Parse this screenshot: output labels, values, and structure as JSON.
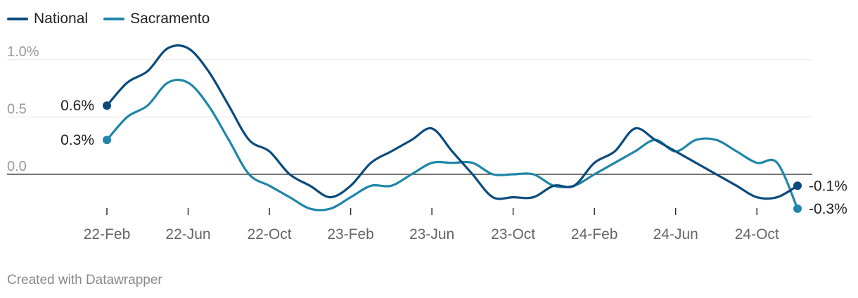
{
  "chart_data": {
    "type": "line",
    "title": "",
    "xlabel": "",
    "ylabel": "",
    "ylim": [
      -0.33,
      1.15
    ],
    "y_ticks": [
      {
        "value": 1.0,
        "label": "1.0%"
      },
      {
        "value": 0.5,
        "label": "0.5"
      },
      {
        "value": 0.0,
        "label": "0.0"
      }
    ],
    "x_ticks": [
      "22-Feb",
      "22-Jun",
      "22-Oct",
      "23-Feb",
      "23-Jun",
      "23-Oct",
      "24-Feb",
      "24-Jun",
      "24-Oct"
    ],
    "grid": true,
    "legend_position": "top-left",
    "series": [
      {
        "name": "National",
        "color": "#0b4a7d",
        "start_label": "0.6%",
        "end_label": "-0.1%",
        "points": [
          [
            "22-Feb",
            0.6
          ],
          [
            "22-Mar",
            0.8
          ],
          [
            "22-Apr",
            0.9
          ],
          [
            "22-May",
            1.1
          ],
          [
            "22-Jun",
            1.1
          ],
          [
            "22-Jul",
            0.9
          ],
          [
            "22-Aug",
            0.6
          ],
          [
            "22-Sep",
            0.3
          ],
          [
            "22-Oct",
            0.2
          ],
          [
            "22-Nov",
            0.0
          ],
          [
            "22-Dec",
            -0.1
          ],
          [
            "23-Jan",
            -0.2
          ],
          [
            "23-Feb",
            -0.1
          ],
          [
            "23-Mar",
            0.1
          ],
          [
            "23-Apr",
            0.2
          ],
          [
            "23-May",
            0.3
          ],
          [
            "23-Jun",
            0.4
          ],
          [
            "23-Jul",
            0.2
          ],
          [
            "23-Aug",
            0.0
          ],
          [
            "23-Sep",
            -0.2
          ],
          [
            "23-Oct",
            -0.2
          ],
          [
            "23-Nov",
            -0.2
          ],
          [
            "23-Dec",
            -0.1
          ],
          [
            "24-Jan",
            -0.1
          ],
          [
            "24-Feb",
            0.1
          ],
          [
            "24-Mar",
            0.2
          ],
          [
            "24-Apr",
            0.4
          ],
          [
            "24-May",
            0.3
          ],
          [
            "24-Jun",
            0.2
          ],
          [
            "24-Jul",
            0.1
          ],
          [
            "24-Aug",
            0.0
          ],
          [
            "24-Sep",
            -0.1
          ],
          [
            "24-Oct",
            -0.2
          ],
          [
            "24-Nov",
            -0.2
          ],
          [
            "24-Dec",
            -0.1
          ]
        ]
      },
      {
        "name": "Sacramento",
        "color": "#1f86a8",
        "start_label": "0.3%",
        "end_label": "-0.3%",
        "points": [
          [
            "22-Feb",
            0.3
          ],
          [
            "22-Mar",
            0.5
          ],
          [
            "22-Apr",
            0.6
          ],
          [
            "22-May",
            0.8
          ],
          [
            "22-Jun",
            0.8
          ],
          [
            "22-Jul",
            0.6
          ],
          [
            "22-Aug",
            0.3
          ],
          [
            "22-Sep",
            0.0
          ],
          [
            "22-Oct",
            -0.1
          ],
          [
            "22-Nov",
            -0.2
          ],
          [
            "22-Dec",
            -0.3
          ],
          [
            "23-Jan",
            -0.3
          ],
          [
            "23-Feb",
            -0.2
          ],
          [
            "23-Mar",
            -0.1
          ],
          [
            "23-Apr",
            -0.1
          ],
          [
            "23-May",
            0.0
          ],
          [
            "23-Jun",
            0.1
          ],
          [
            "23-Jul",
            0.1
          ],
          [
            "23-Aug",
            0.1
          ],
          [
            "23-Sep",
            0.0
          ],
          [
            "23-Oct",
            0.0
          ],
          [
            "23-Nov",
            0.0
          ],
          [
            "23-Dec",
            -0.1
          ],
          [
            "24-Jan",
            -0.1
          ],
          [
            "24-Feb",
            0.0
          ],
          [
            "24-Mar",
            0.1
          ],
          [
            "24-Apr",
            0.2
          ],
          [
            "24-May",
            0.3
          ],
          [
            "24-Jun",
            0.2
          ],
          [
            "24-Jul",
            0.3
          ],
          [
            "24-Aug",
            0.3
          ],
          [
            "24-Sep",
            0.2
          ],
          [
            "24-Oct",
            0.1
          ],
          [
            "24-Nov",
            0.1
          ],
          [
            "24-Dec",
            -0.3
          ]
        ]
      }
    ]
  },
  "footer": {
    "credit": "Created with Datawrapper"
  }
}
